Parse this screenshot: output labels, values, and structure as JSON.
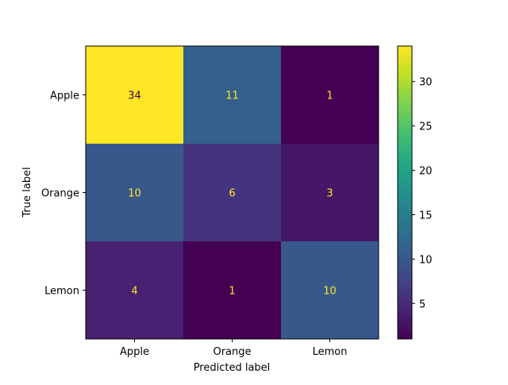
{
  "chart_data": {
    "type": "heatmap",
    "title": "",
    "xlabel": "Predicted label",
    "ylabel": "True label",
    "x_categories": [
      "Apple",
      "Orange",
      "Lemon"
    ],
    "y_categories": [
      "Apple",
      "Orange",
      "Lemon"
    ],
    "values": [
      [
        34,
        11,
        1
      ],
      [
        10,
        6,
        3
      ],
      [
        4,
        1,
        10
      ]
    ],
    "colormap": "viridis",
    "value_text_colors": {
      "on_dark": "#fde725",
      "on_light": "#440154"
    },
    "colorbar": {
      "range": [
        1,
        34
      ],
      "ticks": [
        5,
        10,
        15,
        20,
        25,
        30
      ]
    },
    "grid": false,
    "legend": "colorbar-right"
  }
}
